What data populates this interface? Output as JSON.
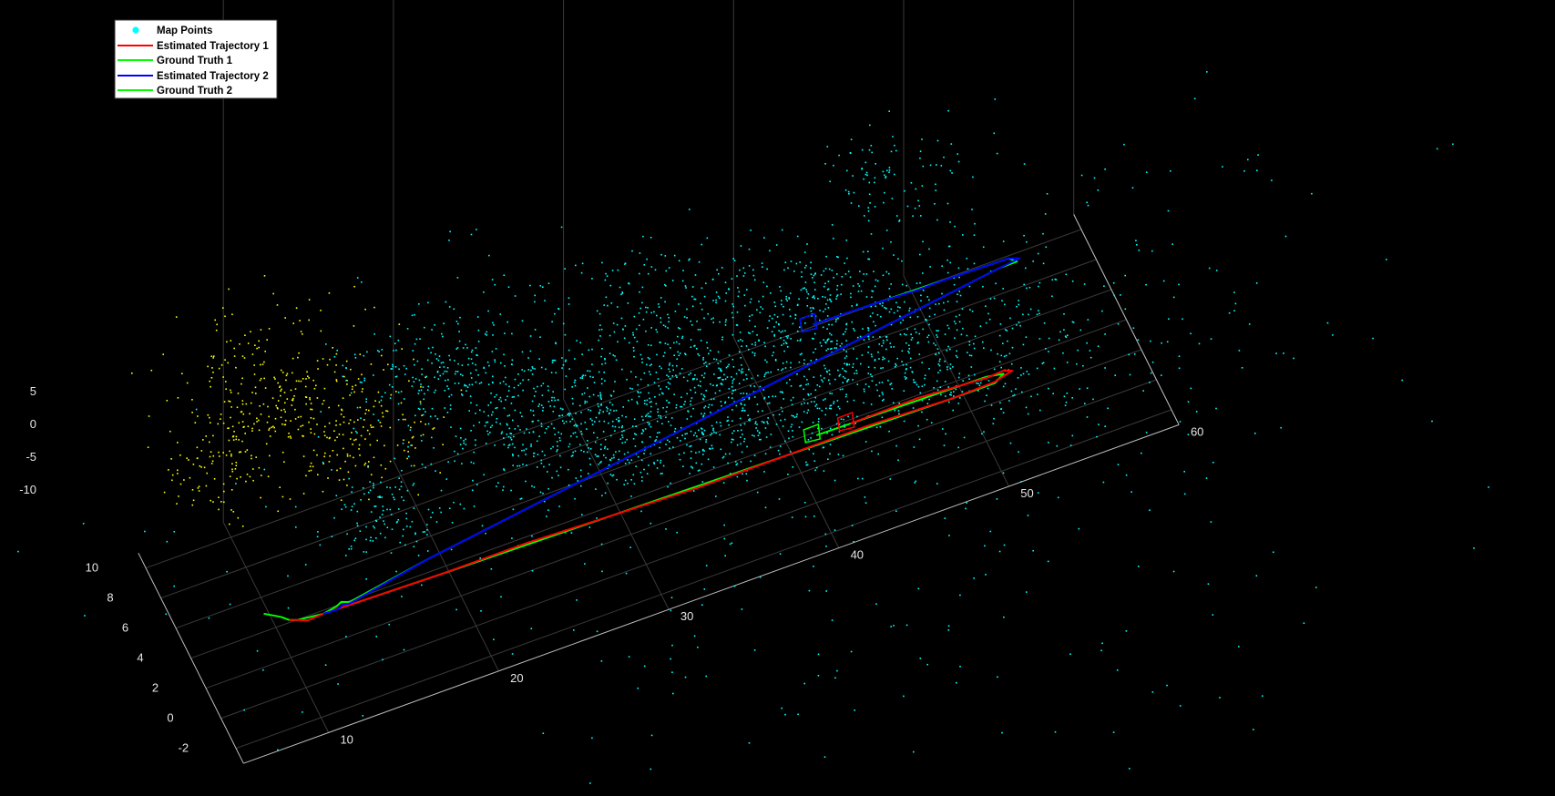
{
  "chart_data": {
    "type": "scatter",
    "projection": "3d",
    "background": "#000000",
    "grid": true,
    "legend": {
      "placement": "top-left",
      "entries": [
        {
          "label": "Map Points",
          "marker": "dot",
          "color": "#00ffff"
        },
        {
          "label": "Estimated Trajectory 1",
          "marker": "line",
          "color": "#ff0000"
        },
        {
          "label": "Ground Truth 1",
          "marker": "line",
          "color": "#00ff00"
        },
        {
          "label": "Estimated Trajectory 2",
          "marker": "line",
          "color": "#0000ff"
        },
        {
          "label": "Ground Truth 2",
          "marker": "line",
          "color": "#00ff00"
        }
      ]
    },
    "axes": {
      "x": {
        "lim": [
          5,
          60
        ],
        "ticks": [
          10,
          20,
          30,
          40,
          50,
          60
        ],
        "label": ""
      },
      "y": {
        "lim": [
          -3,
          11
        ],
        "ticks": [
          -2,
          0,
          2,
          4,
          6,
          8,
          10
        ],
        "label": ""
      },
      "z": {
        "lim": [
          -12,
          7
        ],
        "ticks": [
          -10,
          -5,
          0,
          5
        ],
        "label": ""
      }
    },
    "series": [
      {
        "name": "Ground Truth 1",
        "color": "#00ff00",
        "kind": "line",
        "points": [
          [
            9.5,
            4.5,
            3
          ],
          [
            10.5,
            4.5,
            0
          ],
          [
            11,
            4.5,
            -2
          ],
          [
            11.5,
            4.5,
            -3
          ],
          [
            13,
            4.5,
            -4
          ],
          [
            20,
            4.5,
            -5
          ],
          [
            30,
            4.5,
            -6
          ],
          [
            40,
            4.5,
            -7
          ],
          [
            50,
            4.5,
            -8
          ],
          [
            52,
            4.5,
            -8
          ],
          [
            52.5,
            4.5,
            -8
          ],
          [
            53,
            4.5,
            -6
          ],
          [
            52,
            4.5,
            -5
          ],
          [
            47,
            4.5,
            -4.5
          ],
          [
            42,
            4.5,
            -4
          ]
        ]
      },
      {
        "name": "Estimated Trajectory 1",
        "color": "#ff0000",
        "kind": "line",
        "points": [
          [
            11,
            4.5,
            -2
          ],
          [
            11.5,
            4.5,
            -3
          ],
          [
            12,
            4.3,
            -3.2
          ],
          [
            13,
            4.5,
            -4
          ],
          [
            20,
            4.5,
            -5
          ],
          [
            25,
            4.6,
            -5.5
          ],
          [
            30,
            4.5,
            -6
          ],
          [
            35,
            4.4,
            -6.5
          ],
          [
            40,
            4.5,
            -7
          ],
          [
            45,
            4.6,
            -7.5
          ],
          [
            50,
            4.5,
            -8
          ],
          [
            52.5,
            4.6,
            -8.2
          ],
          [
            53.5,
            4.5,
            -6
          ],
          [
            53,
            4.5,
            -5
          ],
          [
            52,
            4.4,
            -4.8
          ],
          [
            48,
            4.6,
            -4.4
          ],
          [
            44,
            4.5,
            -4.2
          ]
        ]
      },
      {
        "name": "Ground Truth 2",
        "color": "#00ff00",
        "kind": "line",
        "points": [
          [
            13,
            4.5,
            -4
          ],
          [
            14,
            5,
            -6
          ],
          [
            14.5,
            5.5,
            -8
          ],
          [
            15,
            5.5,
            -9
          ],
          [
            20,
            6,
            -7
          ],
          [
            30,
            7,
            -5
          ],
          [
            40,
            8,
            -3
          ],
          [
            50,
            9,
            -1
          ],
          [
            55,
            9.5,
            0
          ],
          [
            56,
            9.5,
            0
          ],
          [
            55.5,
            9.5,
            2
          ],
          [
            52,
            9.5,
            2.5
          ],
          [
            48,
            9.5,
            3
          ],
          [
            44,
            9.5,
            3.5
          ]
        ]
      },
      {
        "name": "Estimated Trajectory 2",
        "color": "#0000ff",
        "kind": "line",
        "points": [
          [
            13,
            4.5,
            -4
          ],
          [
            14,
            4.8,
            -6
          ],
          [
            14.5,
            5.3,
            -8
          ],
          [
            15,
            5.5,
            -9.5
          ],
          [
            20,
            6,
            -7
          ],
          [
            30,
            7,
            -5
          ],
          [
            40,
            8,
            -3
          ],
          [
            50,
            9,
            -1
          ],
          [
            55,
            9.5,
            0
          ],
          [
            56.2,
            9.6,
            0.2
          ],
          [
            55.5,
            9.5,
            2
          ],
          [
            52,
            9.5,
            2.5
          ],
          [
            50,
            9.4,
            3
          ],
          [
            48,
            9.5,
            3
          ],
          [
            44,
            9.5,
            3.5
          ]
        ]
      }
    ],
    "map_points": {
      "name": "Map Points",
      "color": "#00ffff",
      "secondary_color": "#ffff00",
      "approx_count": 6000,
      "x_range": [
        5,
        60
      ],
      "y_range": [
        -3,
        11
      ],
      "z_range": [
        -12,
        7
      ]
    }
  }
}
